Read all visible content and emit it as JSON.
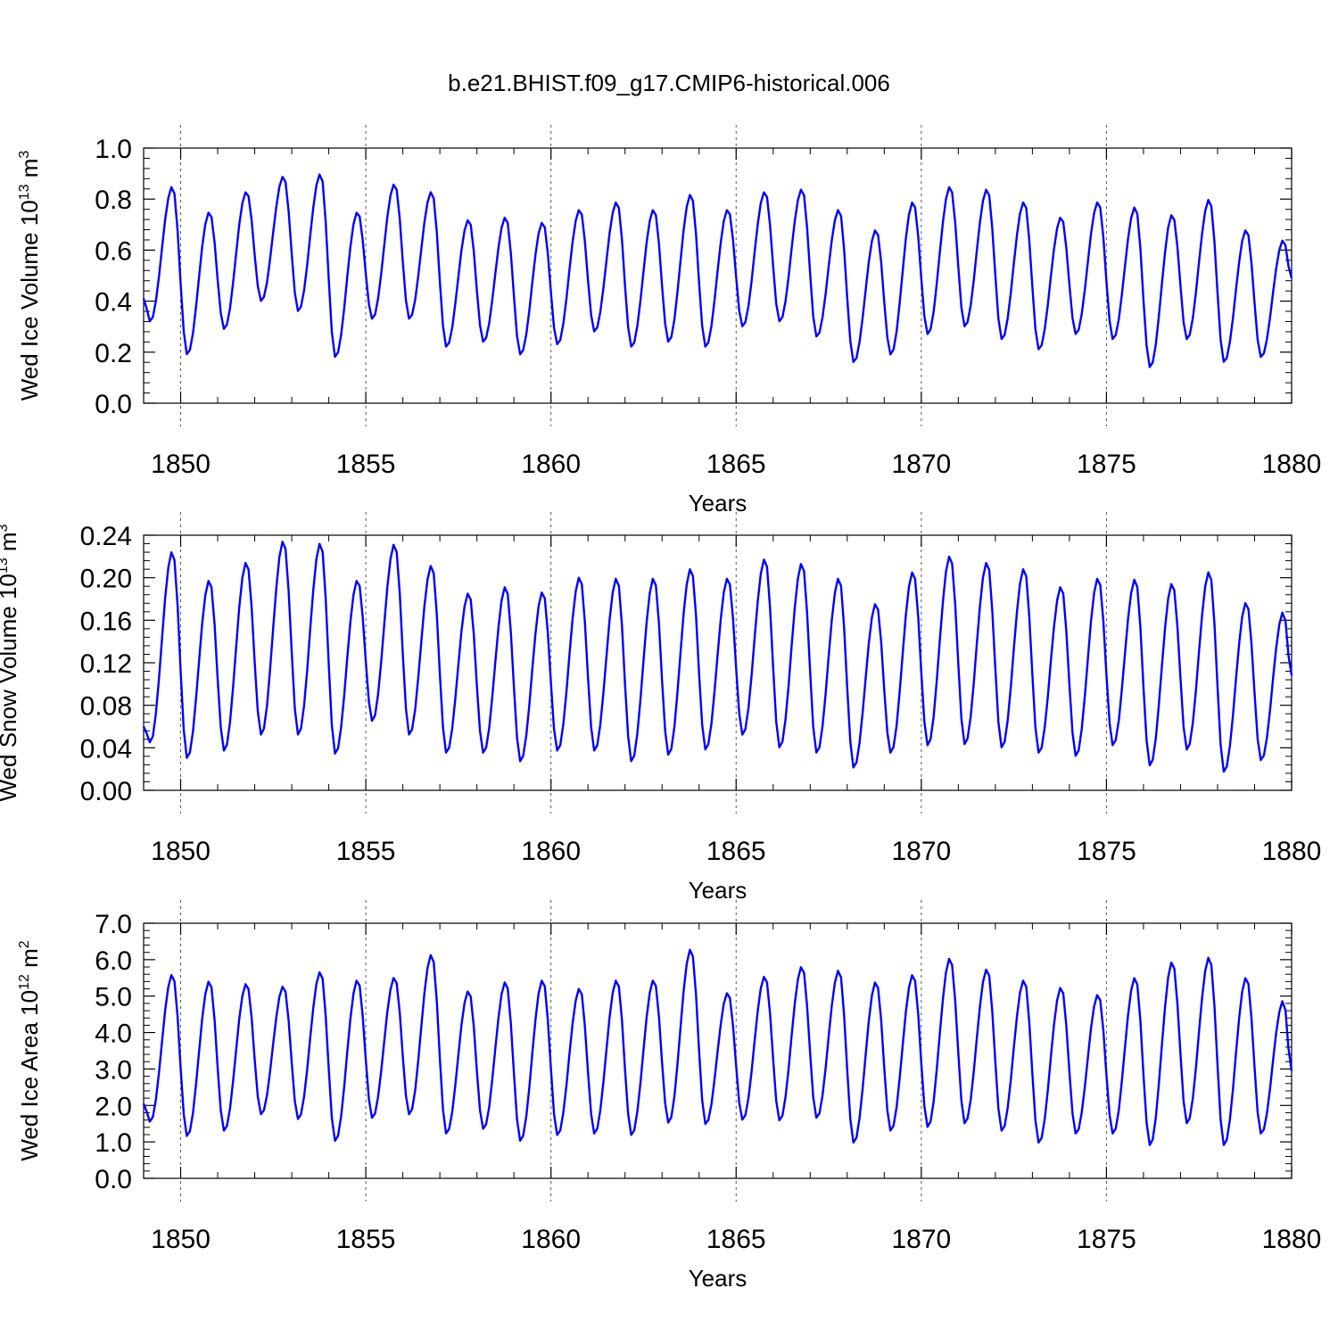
{
  "figure": {
    "title": "b.e21.BHIST.f09_g17.CMIP6-historical.006"
  },
  "chart_data": [
    {
      "type": "line",
      "name": "ice-volume",
      "ylabel": {
        "main": "Wed Ice Volume 10",
        "exp": "13",
        "unit": " m",
        "unit_exp": "3"
      },
      "xlabel": "Years",
      "xlim": [
        1849,
        1880
      ],
      "ylim": [
        0,
        1.0
      ],
      "yticks": [
        "0.0",
        "0.2",
        "0.4",
        "0.6",
        "0.8",
        "1.0"
      ],
      "ytick_values": [
        0,
        0.2,
        0.4,
        0.6,
        0.8,
        1.0
      ],
      "xticks": [
        "1850",
        "1855",
        "1860",
        "1865",
        "1870",
        "1875",
        "1880"
      ],
      "series": [
        {
          "name": "Wed Ice Volume",
          "color": "#0000ff",
          "min": [
            0.32,
            0.19,
            0.29,
            0.4,
            0.36,
            0.18,
            0.33,
            0.33,
            0.22,
            0.24,
            0.19,
            0.23,
            0.28,
            0.22,
            0.24,
            0.22,
            0.3,
            0.32,
            0.26,
            0.16,
            0.19,
            0.27,
            0.3,
            0.25,
            0.21,
            0.27,
            0.25,
            0.14,
            0.25,
            0.16,
            0.18
          ],
          "max": [
            0.85,
            0.75,
            0.83,
            0.89,
            0.9,
            0.75,
            0.86,
            0.83,
            0.72,
            0.73,
            0.71,
            0.76,
            0.79,
            0.76,
            0.82,
            0.76,
            0.83,
            0.84,
            0.76,
            0.68,
            0.79,
            0.85,
            0.84,
            0.79,
            0.73,
            0.79,
            0.77,
            0.74,
            0.8,
            0.68,
            0.64
          ],
          "start": 0.41,
          "end": 0.49
        }
      ]
    },
    {
      "type": "line",
      "name": "snow-volume",
      "ylabel": {
        "main": "Wed Snow Volume 10",
        "exp": "13",
        "unit": " m",
        "unit_exp": "3"
      },
      "xlabel": "Years",
      "xlim": [
        1849,
        1880
      ],
      "ylim": [
        0,
        0.24
      ],
      "yticks": [
        "0.00",
        "0.04",
        "0.08",
        "0.12",
        "0.16",
        "0.20",
        "0.24"
      ],
      "ytick_values": [
        0,
        0.04,
        0.08,
        0.12,
        0.16,
        0.2,
        0.24
      ],
      "xticks": [
        "1850",
        "1855",
        "1860",
        "1865",
        "1870",
        "1875",
        "1880"
      ],
      "series": [
        {
          "name": "Wed Snow Volume",
          "color": "#0000ff",
          "min": [
            0.045,
            0.03,
            0.037,
            0.052,
            0.052,
            0.034,
            0.065,
            0.052,
            0.035,
            0.035,
            0.027,
            0.037,
            0.037,
            0.027,
            0.033,
            0.038,
            0.052,
            0.04,
            0.035,
            0.021,
            0.035,
            0.042,
            0.043,
            0.04,
            0.035,
            0.032,
            0.042,
            0.023,
            0.038,
            0.017,
            0.028
          ],
          "max": [
            0.225,
            0.198,
            0.215,
            0.235,
            0.233,
            0.198,
            0.232,
            0.212,
            0.186,
            0.192,
            0.187,
            0.201,
            0.2,
            0.2,
            0.209,
            0.2,
            0.218,
            0.214,
            0.2,
            0.176,
            0.206,
            0.221,
            0.215,
            0.209,
            0.192,
            0.2,
            0.199,
            0.195,
            0.206,
            0.177,
            0.168
          ],
          "start": 0.06,
          "end": 0.108
        }
      ]
    },
    {
      "type": "line",
      "name": "ice-area",
      "ylabel": {
        "main": "Wed Ice Area 10",
        "exp": "12",
        "unit": " m",
        "unit_exp": "2"
      },
      "xlabel": "Years",
      "xlim": [
        1849,
        1880
      ],
      "ylim": [
        0,
        7.0
      ],
      "yticks": [
        "0.0",
        "1.0",
        "2.0",
        "3.0",
        "4.0",
        "5.0",
        "6.0",
        "7.0"
      ],
      "ytick_values": [
        0,
        1,
        2,
        3,
        4,
        5,
        6,
        7
      ],
      "xticks": [
        "1850",
        "1855",
        "1860",
        "1865",
        "1870",
        "1875",
        "1880"
      ],
      "series": [
        {
          "name": "Wed Ice Area",
          "color": "#0000ff",
          "min": [
            1.55,
            1.15,
            1.3,
            1.75,
            1.62,
            1.02,
            1.65,
            1.75,
            1.22,
            1.35,
            1.02,
            1.18,
            1.22,
            1.18,
            1.52,
            1.48,
            1.6,
            1.58,
            1.65,
            0.97,
            1.3,
            1.4,
            1.5,
            1.3,
            0.97,
            1.22,
            1.22,
            0.9,
            1.5,
            0.9,
            1.22
          ],
          "max": [
            5.6,
            5.42,
            5.35,
            5.28,
            5.68,
            5.45,
            5.52,
            6.15,
            5.15,
            5.4,
            5.45,
            5.22,
            5.45,
            5.45,
            6.3,
            5.1,
            5.55,
            5.82,
            5.72,
            5.4,
            5.6,
            6.05,
            5.75,
            5.45,
            5.25,
            5.05,
            5.52,
            5.95,
            6.08,
            5.52,
            4.88
          ],
          "start": 2.05,
          "end": 2.95
        }
      ]
    }
  ]
}
